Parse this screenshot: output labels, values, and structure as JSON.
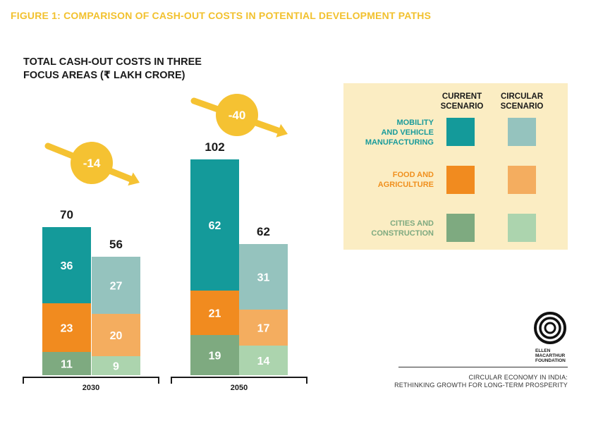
{
  "figure_title": "FIGURE 1: COMPARISON OF CASH-OUT COSTS IN POTENTIAL DEVELOPMENT PATHS",
  "chart_title_line1": "TOTAL CASH-OUT COSTS IN THREE",
  "chart_title_line2": "FOCUS AREAS (₹ LAKH CRORE)",
  "legend": {
    "col_current": [
      "CURRENT",
      "SCENARIO"
    ],
    "col_circular": [
      "CIRCULAR",
      "SCENARIO"
    ],
    "rows": [
      {
        "label": [
          "MOBILITY",
          "AND VEHICLE",
          "MANUFACTURING"
        ],
        "color_label": "#1a9b9b"
      },
      {
        "label": [
          "FOOD AND",
          "AGRICULTURE"
        ],
        "color_label": "#f0901e"
      },
      {
        "label": [
          "CITIES AND",
          "CONSTRUCTION"
        ],
        "color_label": "#7faa80"
      }
    ]
  },
  "colors": {
    "mobility_current": "#149a9a",
    "mobility_circular": "#95c3be",
    "food_current": "#f18b1f",
    "food_circular": "#f4ad5f",
    "cities_current": "#7eaa80",
    "cities_circular": "#acd4ae",
    "arrow": "#f5c232"
  },
  "publisher": {
    "logo_text": [
      "ELLEN",
      "MACARTHUR",
      "FOUNDATION"
    ],
    "line1": "CIRCULAR ECONOMY IN INDIA:",
    "line2": "RETHINKING GROWTH FOR LONG-TERM PROSPERITY"
  },
  "chart_data": {
    "type": "bar",
    "stacked": true,
    "title": "TOTAL CASH-OUT COSTS IN THREE FOCUS AREAS (₹ LAKH CRORE)",
    "groups": [
      {
        "label": "2030",
        "change": "-14",
        "bars": [
          {
            "scenario": "current",
            "total": 70,
            "segments": [
              {
                "name": "cities",
                "value": 11
              },
              {
                "name": "food",
                "value": 23
              },
              {
                "name": "mobility",
                "value": 36
              }
            ]
          },
          {
            "scenario": "circular",
            "total": 56,
            "segments": [
              {
                "name": "cities",
                "value": 9
              },
              {
                "name": "food",
                "value": 20
              },
              {
                "name": "mobility",
                "value": 27
              }
            ]
          }
        ]
      },
      {
        "label": "2050",
        "change": "-40",
        "bars": [
          {
            "scenario": "current",
            "total": 102,
            "segments": [
              {
                "name": "cities",
                "value": 19
              },
              {
                "name": "food",
                "value": 21
              },
              {
                "name": "mobility",
                "value": 62
              }
            ]
          },
          {
            "scenario": "circular",
            "total": 62,
            "segments": [
              {
                "name": "cities",
                "value": 14
              },
              {
                "name": "food",
                "value": 17
              },
              {
                "name": "mobility",
                "value": 31
              }
            ]
          }
        ]
      }
    ]
  }
}
